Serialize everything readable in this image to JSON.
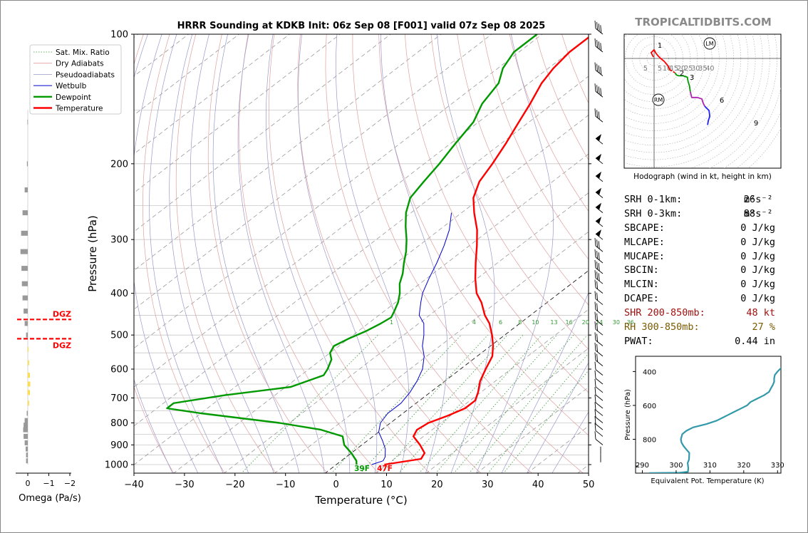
{
  "title": "HRRR Sounding at KDKB Init: 06z Sep 08 [F001] valid 07z Sep 08 2025",
  "brand": "TROPICALTIDBITS.COM",
  "chart_data": [
    {
      "type": "line",
      "subtype": "skew-t log-p sounding",
      "xlabel": "Temperature (°C)",
      "ylabel": "Pressure (hPa)",
      "xlim": [
        -40,
        50
      ],
      "ylim": [
        1050,
        100
      ],
      "y_scale": "log",
      "x_ticks": [
        -40,
        -30,
        -20,
        -10,
        0,
        10,
        20,
        30,
        40,
        50
      ],
      "x_tick_labels": [
        "−40",
        "−30",
        "−20",
        "−10",
        "0",
        "10",
        "20",
        "30",
        "40",
        "50"
      ],
      "y_ticks": [
        1000,
        900,
        800,
        700,
        600,
        500,
        400,
        300,
        200,
        100
      ],
      "grid": true,
      "legend_position": "top-left",
      "legend": [
        "Sat. Mix. Ratio",
        "Dry Adiabats",
        "Pseudoadiabats",
        "Wetbulb",
        "Dewpoint",
        "Temperature"
      ],
      "mixing_ratio_labels": [
        "1",
        "4",
        "6",
        "8",
        "10",
        "13",
        "16",
        "20",
        "24",
        "30",
        "36"
      ],
      "surface_labels": {
        "dewpoint": "39F",
        "temperature": "47F"
      },
      "series": [
        {
          "name": "Temperature",
          "color": "#ff0000",
          "points": [
            [
              9.5,
              1000
            ],
            [
              15.3,
              970
            ],
            [
              14.5,
              940
            ],
            [
              11.5,
              900
            ],
            [
              8,
              860
            ],
            [
              7,
              830
            ],
            [
              7.5,
              800
            ],
            [
              9.5,
              770
            ],
            [
              11,
              740
            ],
            [
              11,
              710
            ],
            [
              9.5,
              680
            ],
            [
              7,
              640
            ],
            [
              5,
              600
            ],
            [
              3,
              560
            ],
            [
              0.5,
              530
            ],
            [
              -2.5,
              500
            ],
            [
              -6,
              470
            ],
            [
              -9,
              450
            ],
            [
              -13,
              420
            ],
            [
              -16.3,
              400
            ],
            [
              -20.3,
              370
            ],
            [
              -24.3,
              340
            ],
            [
              -28.5,
              310
            ],
            [
              -32.5,
              285
            ],
            [
              -37.5,
              260
            ],
            [
              -41.5,
              240
            ],
            [
              -44.5,
              220
            ],
            [
              -46.5,
              200
            ],
            [
              -49,
              180
            ],
            [
              -52,
              160
            ],
            [
              -54.5,
              145
            ],
            [
              -57.5,
              130
            ],
            [
              -59,
              120
            ],
            [
              -60,
              110
            ],
            [
              -60,
              100
            ]
          ]
        },
        {
          "name": "Dewpoint",
          "color": "#009900",
          "points": [
            [
              4,
              1000
            ],
            [
              3,
              980
            ],
            [
              0,
              940
            ],
            [
              -3.5,
              900
            ],
            [
              -6,
              860
            ],
            [
              -12,
              830
            ],
            [
              -22,
              800
            ],
            [
              -40,
              760
            ],
            [
              -48,
              740
            ],
            [
              -48,
              720
            ],
            [
              -40,
              690
            ],
            [
              -29,
              660
            ],
            [
              -25.5,
              620
            ],
            [
              -26.3,
              600
            ],
            [
              -28,
              570
            ],
            [
              -30,
              550
            ],
            [
              -31,
              530
            ],
            [
              -30,
              510
            ],
            [
              -28.5,
              490
            ],
            [
              -27.5,
              470
            ],
            [
              -27,
              455
            ],
            [
              -28,
              440
            ],
            [
              -29.5,
              420
            ],
            [
              -31.5,
              400
            ],
            [
              -34,
              380
            ],
            [
              -36,
              360
            ],
            [
              -38.5,
              340
            ],
            [
              -41,
              320
            ],
            [
              -44,
              300
            ],
            [
              -47.5,
              280
            ],
            [
              -51,
              260
            ],
            [
              -54,
              240
            ],
            [
              -55.5,
              220
            ],
            [
              -57,
              200
            ],
            [
              -59,
              180
            ],
            [
              -61,
              160
            ],
            [
              -64,
              145
            ],
            [
              -66,
              130
            ],
            [
              -69,
              120
            ],
            [
              -71,
              110
            ],
            [
              -71,
              100
            ]
          ]
        },
        {
          "name": "Wetbulb",
          "color": "#0000cc",
          "points": [
            [
              7,
              1000
            ],
            [
              8.3,
              980
            ],
            [
              7.7,
              960
            ],
            [
              5.7,
              920
            ],
            [
              3,
              880
            ],
            [
              0,
              840
            ],
            [
              -2,
              800
            ],
            [
              -3,
              760
            ],
            [
              -3,
              720
            ],
            [
              -4,
              680
            ],
            [
              -5.5,
              640
            ],
            [
              -7.5,
              600
            ],
            [
              -10.5,
              560
            ],
            [
              -13.5,
              530
            ],
            [
              -16,
              500
            ],
            [
              -19,
              470
            ],
            [
              -22,
              450
            ],
            [
              -25,
              420
            ],
            [
              -27,
              400
            ],
            [
              -29.5,
              370
            ],
            [
              -32,
              340
            ],
            [
              -35,
              310
            ],
            [
              -38,
              285
            ],
            [
              -42,
              260
            ]
          ]
        }
      ],
      "omega": {
        "xlabel": "Omega (Pa/s)",
        "x_ticks": [
          0,
          -1,
          -2
        ],
        "x_tick_labels": [
          "0",
          "−1",
          "−2"
        ],
        "dgz_label": "DGZ",
        "dgz_bounds_hpa": [
          460,
          510
        ],
        "bars": [
          {
            "p": 160,
            "v": -0.02
          },
          {
            "p": 200,
            "v": -0.04
          },
          {
            "p": 230,
            "v": -0.15
          },
          {
            "p": 260,
            "v": -0.25
          },
          {
            "p": 290,
            "v": -0.32
          },
          {
            "p": 320,
            "v": -0.35
          },
          {
            "p": 350,
            "v": -0.3
          },
          {
            "p": 380,
            "v": -0.28
          },
          {
            "p": 410,
            "v": -0.25
          },
          {
            "p": 440,
            "v": -0.2
          },
          {
            "p": 470,
            "v": -0.15
          },
          {
            "p": 500,
            "v": -0.08
          },
          {
            "p": 540,
            "v": 0.04
          },
          {
            "p": 580,
            "v": 0.06
          },
          {
            "p": 620,
            "v": 0.1
          },
          {
            "p": 650,
            "v": 0.12
          },
          {
            "p": 680,
            "v": 0.1
          },
          {
            "p": 720,
            "v": 0.06
          },
          {
            "p": 760,
            "v": -0.05
          },
          {
            "p": 790,
            "v": -0.15
          },
          {
            "p": 810,
            "v": -0.2
          },
          {
            "p": 830,
            "v": -0.22
          },
          {
            "p": 860,
            "v": -0.2
          },
          {
            "p": 890,
            "v": -0.15
          },
          {
            "p": 920,
            "v": -0.1
          },
          {
            "p": 950,
            "v": -0.08
          },
          {
            "p": 980,
            "v": -0.08
          }
        ]
      }
    },
    {
      "type": "line",
      "subtype": "hodograph",
      "title": "Hodograph (wind in kt, height in km)",
      "ring_labels": [
        "5",
        "5",
        "10",
        "15",
        "20",
        "25",
        "30",
        "35",
        "40"
      ],
      "height_labels": [
        "1",
        "2",
        "3",
        "6",
        "9"
      ],
      "markers": [
        "LM",
        "RM"
      ],
      "segments": [
        {
          "color": "#ff0000",
          "points": [
            [
              -0.5,
              -1
            ],
            [
              -2,
              -4
            ],
            [
              0,
              -6
            ],
            [
              1,
              -4
            ],
            [
              2.5,
              -2
            ],
            [
              4.5,
              0
            ],
            [
              7,
              2
            ],
            [
              9.5,
              5
            ],
            [
              11,
              8
            ]
          ]
        },
        {
          "color": "#ff0000",
          "points": [
            [
              11,
              8
            ],
            [
              13,
              9
            ],
            [
              14.5,
              10
            ]
          ],
          "dashed": true
        },
        {
          "color": "#009900",
          "points": [
            [
              14.5,
              10
            ],
            [
              15.5,
              11.5
            ],
            [
              17,
              12
            ],
            [
              20,
              12
            ],
            [
              23,
              13
            ],
            [
              23.5,
              16
            ],
            [
              24.5,
              19
            ],
            [
              25,
              23
            ]
          ]
        },
        {
          "color": "#b020b0",
          "points": [
            [
              25,
              23
            ],
            [
              26,
              27
            ],
            [
              30,
              27
            ],
            [
              33,
              28
            ],
            [
              34,
              31
            ],
            [
              35,
              33
            ]
          ]
        },
        {
          "color": "#2020ff",
          "points": [
            [
              35,
              33
            ],
            [
              38,
              36
            ],
            [
              38.5,
              40
            ],
            [
              37.5,
              43
            ],
            [
              37,
              46
            ]
          ]
        }
      ]
    },
    {
      "type": "line",
      "subtype": "theta-e profile",
      "xlabel": "Equivalent Pot. Temperature (K)",
      "ylabel": "Pressure (hPa)",
      "x_ticks": [
        290,
        300,
        310,
        320,
        330
      ],
      "y_ticks": [
        400,
        600,
        800
      ],
      "xlim": [
        288,
        331
      ],
      "ylim": [
        1000,
        310
      ],
      "color": "#3399aa",
      "points": [
        [
          292,
          999
        ],
        [
          301,
          997
        ],
        [
          303.5,
          992
        ],
        [
          303.6,
          970
        ],
        [
          303.4,
          940
        ],
        [
          303.8,
          920
        ],
        [
          303.9,
          880
        ],
        [
          303,
          860
        ],
        [
          302.2,
          840
        ],
        [
          301.6,
          820
        ],
        [
          301.4,
          800
        ],
        [
          301.8,
          770
        ],
        [
          303,
          750
        ],
        [
          305,
          730
        ],
        [
          309,
          710
        ],
        [
          312,
          690
        ],
        [
          315,
          660
        ],
        [
          317,
          640
        ],
        [
          319,
          620
        ],
        [
          321,
          600
        ],
        [
          322,
          580
        ],
        [
          324,
          560
        ],
        [
          326,
          540
        ],
        [
          327.5,
          520
        ],
        [
          328,
          500
        ],
        [
          328.6,
          480
        ],
        [
          329,
          460
        ],
        [
          329,
          440
        ],
        [
          329.2,
          420
        ],
        [
          330,
          400
        ],
        [
          331,
          380
        ],
        [
          333,
          360
        ],
        [
          335,
          330
        ]
      ]
    }
  ],
  "stats": [
    {
      "label": "SRH 0-1km:",
      "value": "26",
      "unit": "m²s⁻²",
      "color": "#000000"
    },
    {
      "label": "SRH 0-3km:",
      "value": "88",
      "unit": "m²s⁻²",
      "color": "#000000"
    },
    {
      "label": "SBCAPE:",
      "value": "0 J/kg",
      "unit": "",
      "color": "#000000"
    },
    {
      "label": "MLCAPE:",
      "value": "0 J/kg",
      "unit": "",
      "color": "#000000"
    },
    {
      "label": "MUCAPE:",
      "value": "0 J/kg",
      "unit": "",
      "color": "#000000"
    },
    {
      "label": "SBCIN:",
      "value": "0 J/kg",
      "unit": "",
      "color": "#000000"
    },
    {
      "label": "MLCIN:",
      "value": "0 J/kg",
      "unit": "",
      "color": "#000000"
    },
    {
      "label": "DCAPE:",
      "value": "0 J/kg",
      "unit": "",
      "color": "#000000"
    },
    {
      "label": "SHR 200-850mb:",
      "value": "48 kt",
      "unit": "",
      "color": "#a01010"
    },
    {
      "label": "RH 300-850mb:",
      "value": "27 %",
      "unit": "",
      "color": "#7a5a00"
    },
    {
      "label": "PWAT:",
      "value": "0.44 in",
      "unit": "",
      "color": "#000000"
    }
  ]
}
